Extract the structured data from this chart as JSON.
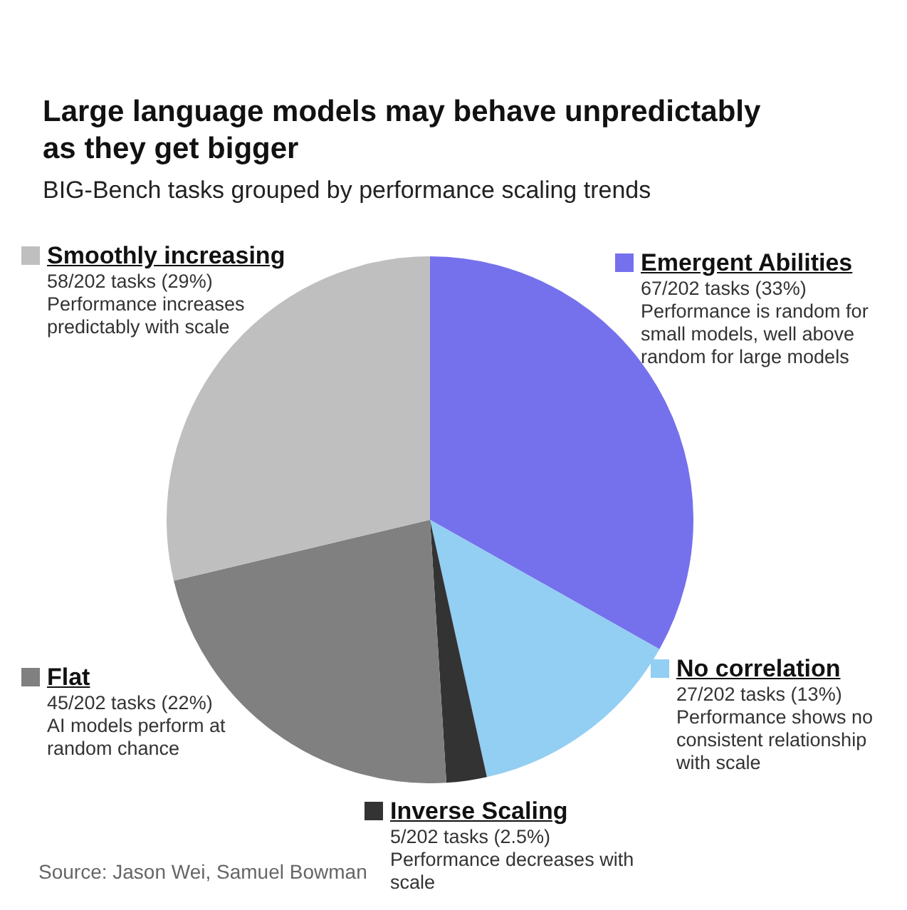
{
  "chart_data": {
    "type": "pie",
    "title": "Large language models may behave unpredictably as they get bigger",
    "subtitle": "BIG-Bench tasks grouped by performance scaling trends",
    "categories": [
      "Emergent Abilities",
      "No correlation",
      "Inverse Scaling",
      "Flat",
      "Smoothly increasing"
    ],
    "values": [
      67,
      27,
      5,
      45,
      58
    ],
    "colors": [
      "#7571ec",
      "#93cef3",
      "#333333",
      "#808080",
      "#bfbfbf"
    ],
    "legend": "bottom right",
    "value_labels": [
      "67/202 tasks (33%)",
      "27/202 tasks (13%)",
      "5/202 tasks (2.5%)",
      "45/202 tasks (22%)",
      "58/202 tasks (29%)"
    ],
    "annotations": [
      {
        "text": "Performance is random for small models, well above random for large models",
        "x": "Emergent Abilities"
      },
      {
        "text": "Performance shows no consistent relationship with scale",
        "x": "No correlation"
      },
      {
        "text": "Performance decreases with scale",
        "x": "Inverse Scaling"
      },
      {
        "text": "AI models perform at random chance",
        "x": "Flat"
      },
      {
        "text": "Performance increases predictably with scale",
        "x": "Smoothly increasing"
      },
      "Source: Jason Wei, Samuel Bowman"
    ]
  }
}
